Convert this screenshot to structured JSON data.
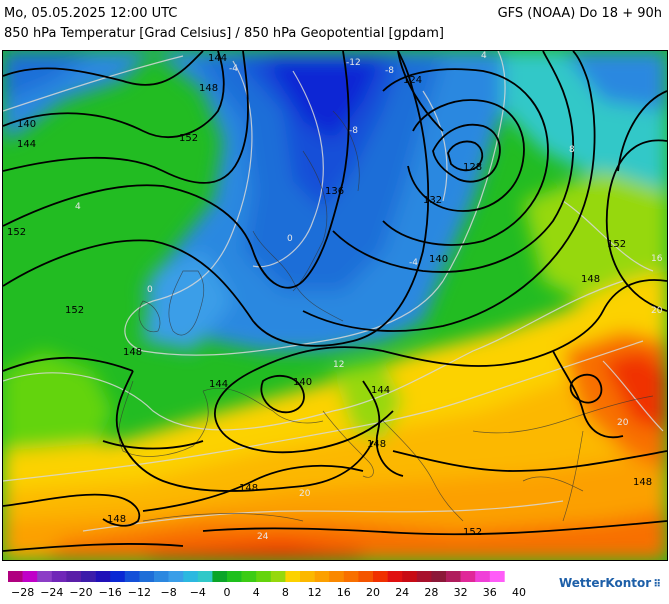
{
  "header": {
    "date_line": "Mo, 05.05.2025 12:00 UTC",
    "model_line": "GFS (NOAA) Do 18 + 90h",
    "subtitle": "850 hPa Temperatur [Grad Celsius] / 850 hPa Geopotential [gpdam]"
  },
  "map": {
    "geopotential_labels": [
      {
        "text": "144"
      },
      {
        "text": "148"
      },
      {
        "text": "140"
      },
      {
        "text": "144"
      },
      {
        "text": "152"
      },
      {
        "text": "152"
      },
      {
        "text": "152"
      },
      {
        "text": "148"
      },
      {
        "text": "124"
      },
      {
        "text": "128"
      },
      {
        "text": "132"
      },
      {
        "text": "136"
      },
      {
        "text": "140"
      },
      {
        "text": "152"
      },
      {
        "text": "148"
      },
      {
        "text": "144"
      },
      {
        "text": "140"
      },
      {
        "text": "144"
      },
      {
        "text": "148"
      },
      {
        "text": "148"
      },
      {
        "text": "148"
      },
      {
        "text": "148"
      },
      {
        "text": "152"
      }
    ],
    "temperature_labels": [
      {
        "text": "-12"
      },
      {
        "text": "-8"
      },
      {
        "text": "-4"
      },
      {
        "text": "-8"
      },
      {
        "text": "-4"
      },
      {
        "text": "0"
      },
      {
        "text": "4"
      },
      {
        "text": "0"
      },
      {
        "text": "8"
      },
      {
        "text": "16"
      },
      {
        "text": "20"
      },
      {
        "text": "20"
      },
      {
        "text": "20"
      },
      {
        "text": "24"
      },
      {
        "text": "12"
      },
      {
        "text": "4"
      }
    ]
  },
  "legend": {
    "colors": [
      "#b0007f",
      "#c000c8",
      "#8c3ec6",
      "#7026b8",
      "#5a1ea8",
      "#3c1caa",
      "#2010b8",
      "#0a28d4",
      "#1450d8",
      "#1e6ed8",
      "#2c88e0",
      "#3a9ee8",
      "#2cb8e0",
      "#30c8c8",
      "#0aa528",
      "#1ec01c",
      "#3ccc14",
      "#64d40c",
      "#96d80c",
      "#fcd200",
      "#fcb800",
      "#fca000",
      "#fa8800",
      "#f87000",
      "#f45400",
      "#f03000",
      "#e01010",
      "#c80a14",
      "#a8102c",
      "#8c1838",
      "#b01c5c",
      "#e02898",
      "#f040d8",
      "#ff5cf8"
    ],
    "tick_labels": [
      "−28",
      "−24",
      "−20",
      "−16",
      "−12",
      "−8",
      "−4",
      "0",
      "4",
      "8",
      "12",
      "16",
      "20",
      "24",
      "28",
      "32",
      "36",
      "40"
    ]
  },
  "branding": {
    "name": "WetterKontor"
  }
}
